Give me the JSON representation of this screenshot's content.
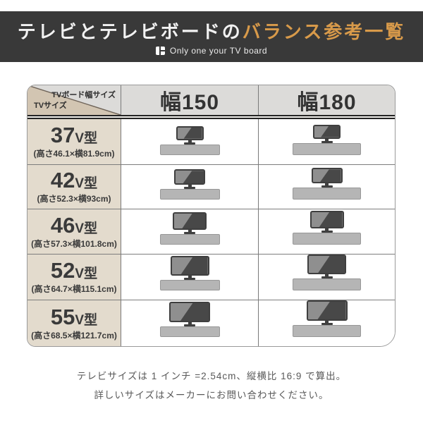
{
  "header": {
    "title_main": "テレビとテレビボードの",
    "title_accent": "バランス参考一覧",
    "subtitle": "Only one your TV board",
    "bar_color": "#393939",
    "accent_color": "#d89a4a"
  },
  "table": {
    "corner": {
      "top_label": "TVボード幅サイズ",
      "bottom_label": "TVサイズ"
    },
    "columns": [
      {
        "label": "幅150",
        "board_width_cm": 150
      },
      {
        "label": "幅180",
        "board_width_cm": 180
      }
    ],
    "rows": [
      {
        "size": "37",
        "unit": "V型",
        "dimensions": "(高さ46.1×横81.9cm)",
        "height_cm": 46.1,
        "width_cm": 81.9
      },
      {
        "size": "42",
        "unit": "V型",
        "dimensions": "(高さ52.3×横93cm)",
        "height_cm": 52.3,
        "width_cm": 93
      },
      {
        "size": "46",
        "unit": "V型",
        "dimensions": "(高さ57.3×横101.8cm)",
        "height_cm": 57.3,
        "width_cm": 101.8
      },
      {
        "size": "52",
        "unit": "V型",
        "dimensions": "(高さ64.7×横115.1cm)",
        "height_cm": 64.7,
        "width_cm": 115.1
      },
      {
        "size": "55",
        "unit": "V型",
        "dimensions": "(高さ68.5×横121.7cm)",
        "height_cm": 68.5,
        "width_cm": 121.7
      }
    ],
    "colors": {
      "corner_beige": "#d2c5b2",
      "corner_triangle": "#dcdbd9",
      "header_gray": "#dcdbd9",
      "label_beige": "#e3dbcd",
      "tv_frame": "#3f3f3f",
      "tv_screen": "#8f8f8f",
      "tv_glare": "#484848",
      "board_gray": "#b5b5b5"
    }
  },
  "footer": {
    "line1": "テレビサイズは 1 インチ =2.54cm、縦横比 16:9 で算出。",
    "line2": "詳しいサイズはメーカーにお問い合わせください。"
  },
  "chart_data": {
    "type": "table",
    "title": "テレビとテレビボードのバランス参考一覧",
    "columns": [
      "TVサイズ",
      "幅150",
      "幅180"
    ],
    "rows": [
      {
        "tv_size": "37V型",
        "tv_height_cm": 46.1,
        "tv_width_cm": 81.9,
        "幅150": "TV+ボード図",
        "幅180": "TV+ボード図"
      },
      {
        "tv_size": "42V型",
        "tv_height_cm": 52.3,
        "tv_width_cm": 93,
        "幅150": "TV+ボード図",
        "幅180": "TV+ボード図"
      },
      {
        "tv_size": "46V型",
        "tv_height_cm": 57.3,
        "tv_width_cm": 101.8,
        "幅150": "TV+ボード図",
        "幅180": "TV+ボード図"
      },
      {
        "tv_size": "52V型",
        "tv_height_cm": 64.7,
        "tv_width_cm": 115.1,
        "幅150": "TV+ボード図",
        "幅180": "TV+ボード図"
      },
      {
        "tv_size": "55V型",
        "tv_height_cm": 68.5,
        "tv_width_cm": 121.7,
        "幅150": "TV+ボード図",
        "幅180": "TV+ボード図"
      }
    ],
    "notes": [
      "テレビサイズは 1 インチ =2.54cm、縦横比 16:9 で算出。",
      "詳しいサイズはメーカーにお問い合わせください。"
    ]
  }
}
